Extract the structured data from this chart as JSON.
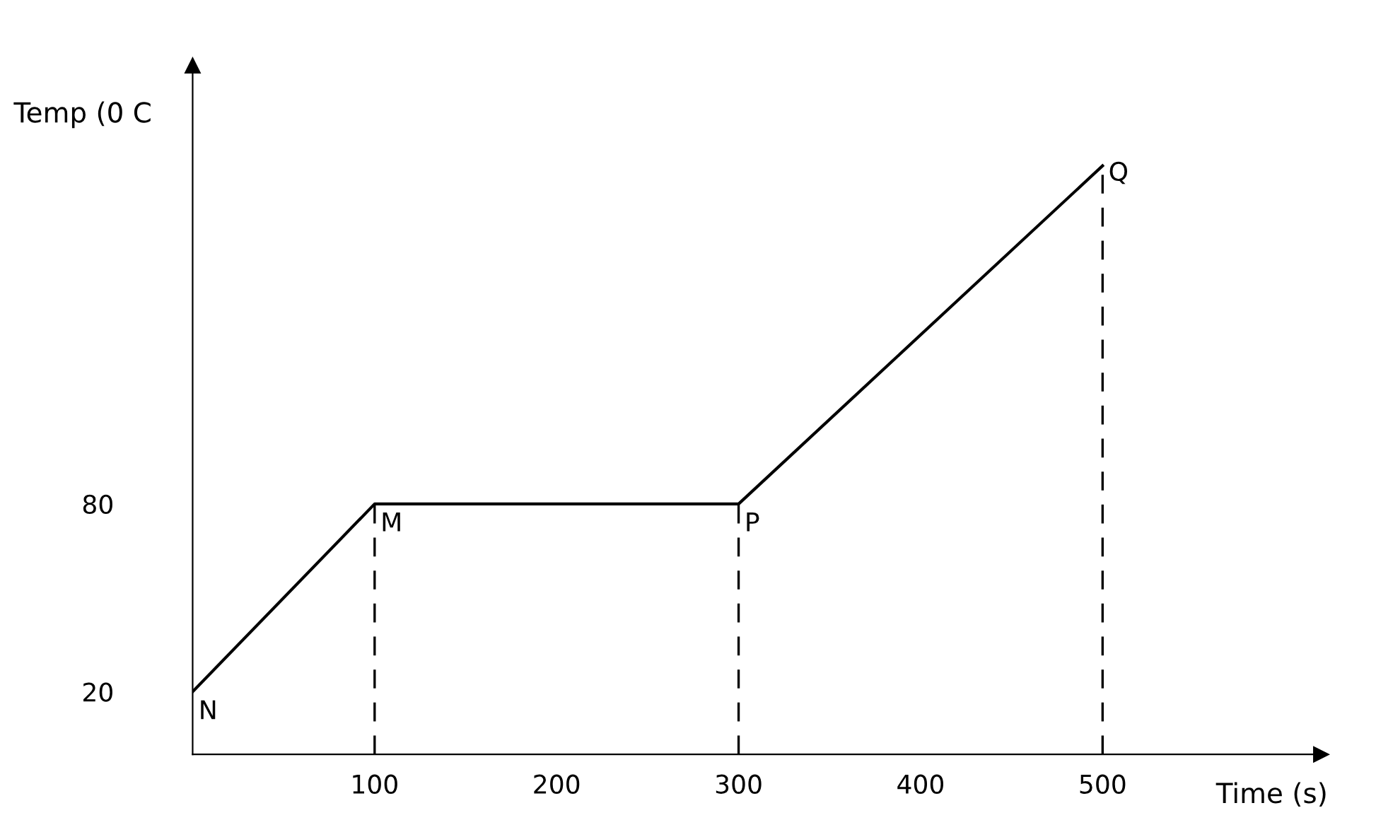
{
  "chart_data": {
    "type": "line",
    "x": [
      0,
      100,
      300,
      500
    ],
    "series": [
      {
        "color": "#000000",
        "values": [
          20,
          80,
          80,
          188
        ]
      }
    ],
    "xlabel": "Time (s)",
    "ylabel": "Temp (0 C",
    "xlim": [
      0,
      620
    ],
    "ylim": [
      0,
      220
    ],
    "xticks": [
      100,
      200,
      300,
      400,
      500
    ],
    "yticks": [
      20,
      80
    ],
    "ref_lines": [
      {
        "axis": "x",
        "value": 100,
        "label": null,
        "color": "#000000",
        "line_style": "dashed"
      },
      {
        "axis": "x",
        "value": 300,
        "label": null,
        "color": "#000000",
        "line_style": "dashed"
      },
      {
        "axis": "x",
        "value": 500,
        "label": null,
        "color": "#000000",
        "line_style": "dashed"
      }
    ],
    "annotations": [
      {
        "text": "N",
        "x": 0,
        "y": 20
      },
      {
        "text": "M",
        "x": 100,
        "y": 80
      },
      {
        "text": "P",
        "x": 300,
        "y": 80
      },
      {
        "text": "Q",
        "x": 500,
        "y": 188
      }
    ],
    "grid": false,
    "legend": false,
    "marker": "none",
    "line_style": "solid"
  }
}
